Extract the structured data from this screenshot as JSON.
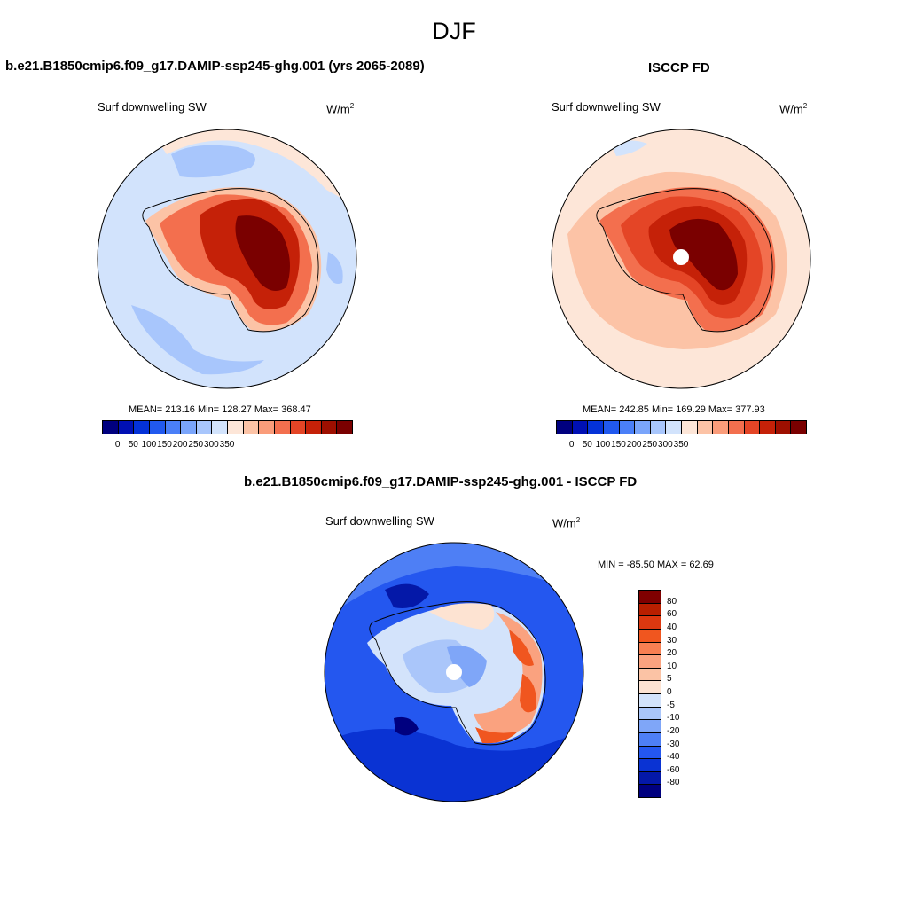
{
  "season": "DJF",
  "panels": [
    {
      "title": "b.e21.B1850cmip6.f09_g17.DAMIP-ssp245-ghg.001 (yrs 2065-2089)",
      "variable": "Surf downwelling SW",
      "units_base": "W/m",
      "units_exp": "2",
      "stats": {
        "mean": "213.16",
        "min": "128.27",
        "max": "368.47"
      },
      "stats_text": "MEAN= 213.16  Min= 128.27  Max= 368.47",
      "pole_hole": false
    },
    {
      "title": "ISCCP FD",
      "variable": "Surf downwelling SW",
      "units_base": "W/m",
      "units_exp": "2",
      "stats": {
        "mean": "242.85",
        "min": "169.29",
        "max": "377.93"
      },
      "stats_text": "MEAN= 242.85  Min= 169.29  Max= 377.93",
      "pole_hole": true
    },
    {
      "title": "b.e21.B1850cmip6.f09_g17.DAMIP-ssp245-ghg.001 - ISCCP FD",
      "variable": "Surf downwelling SW",
      "units_base": "W/m",
      "units_exp": "2",
      "stats_text": "MIN = -85.50 MAX =  62.69",
      "pole_hole": true
    }
  ],
  "colorbar_horizontal": {
    "labels": [
      "0",
      "50",
      "100",
      "150",
      "200",
      "250",
      "300",
      "350"
    ],
    "colors": [
      "#00007f",
      "#0010b4",
      "#0432d8",
      "#2159ef",
      "#4a7ff8",
      "#7aa5fb",
      "#a8c6fc",
      "#d2e3fc",
      "#fde6d8",
      "#fcc3a6",
      "#fa9c7a",
      "#f36f4e",
      "#e44526",
      "#c52108",
      "#9e0f00",
      "#7a0000"
    ]
  },
  "colorbar_vertical": {
    "labels": [
      "80",
      "60",
      "40",
      "30",
      "20",
      "10",
      "5",
      "0",
      "-5",
      "-10",
      "-20",
      "-30",
      "-40",
      "-60",
      "-80"
    ],
    "colors": [
      "#7f0000",
      "#b81f00",
      "#dc3810",
      "#f0561f",
      "#f77f52",
      "#faa27f",
      "#fbc3a5",
      "#fde3d2",
      "#d3e3fb",
      "#aac6fa",
      "#7fa6f8",
      "#4e7ff5",
      "#2457ef",
      "#0a33d3",
      "#0418a8",
      "#00007f"
    ]
  }
}
